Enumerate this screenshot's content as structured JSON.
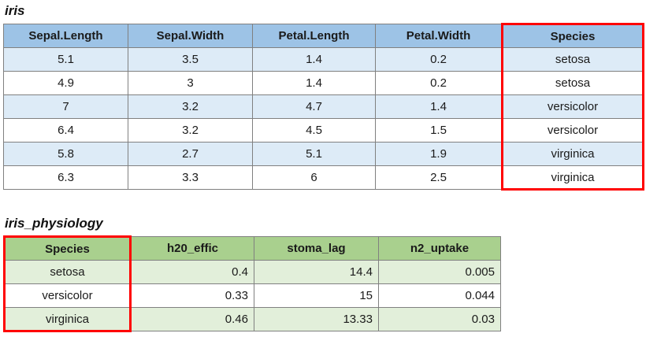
{
  "tables": [
    {
      "title": "iris",
      "columns": [
        "Sepal.Length",
        "Sepal.Width",
        "Petal.Length",
        "Petal.Width",
        "Species"
      ],
      "rows": [
        [
          "5.1",
          "3.5",
          "1.4",
          "0.2",
          "setosa"
        ],
        [
          "4.9",
          "3",
          "1.4",
          "0.2",
          "setosa"
        ],
        [
          "7",
          "3.2",
          "4.7",
          "1.4",
          "versicolor"
        ],
        [
          "6.4",
          "3.2",
          "4.5",
          "1.5",
          "versicolor"
        ],
        [
          "5.8",
          "2.7",
          "5.1",
          "1.9",
          "virginica"
        ],
        [
          "6.3",
          "3.3",
          "6",
          "2.5",
          "virginica"
        ]
      ],
      "column_align": [
        "center",
        "center",
        "center",
        "center",
        "center"
      ],
      "highlight_column_index": 4,
      "colors": {
        "header_bg": "#9DC3E6",
        "stripe_bg": "#DDEBF7",
        "grid": "#808080",
        "highlight": "#FF0000"
      }
    },
    {
      "title": "iris_physiology",
      "columns": [
        "Species",
        "h20_effic",
        "stoma_lag",
        "n2_uptake"
      ],
      "rows": [
        [
          "setosa",
          "0.4",
          "14.4",
          "0.005"
        ],
        [
          "versicolor",
          "0.33",
          "15",
          "0.044"
        ],
        [
          "virginica",
          "0.46",
          "13.33",
          "0.03"
        ]
      ],
      "column_align": [
        "center",
        "right",
        "right",
        "right"
      ],
      "highlight_column_index": 0,
      "colors": {
        "header_bg": "#A9D08E",
        "stripe_bg": "#E2EFDA",
        "grid": "#808080",
        "highlight": "#FF0000"
      }
    }
  ]
}
